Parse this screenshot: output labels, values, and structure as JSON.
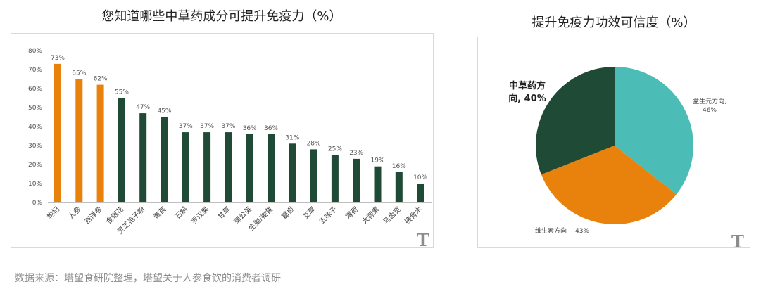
{
  "chart_data": [
    {
      "type": "bar",
      "title": "您知道哪些中草药成分可提升免疫力（%）",
      "categories": [
        "枸杞",
        "人参",
        "西洋参",
        "金银花",
        "灵芝孢子粉",
        "黄芪",
        "石斛",
        "罗汉果",
        "甘草",
        "蒲公英",
        "生姜/姜黄",
        "葛根",
        "艾草",
        "五味子",
        "薄荷",
        "大蒜素",
        "马齿苋",
        "接骨木"
      ],
      "values": [
        73,
        65,
        62,
        55,
        47,
        45,
        37,
        37,
        37,
        36,
        36,
        31,
        28,
        25,
        23,
        19,
        16,
        10
      ],
      "value_labels": [
        "73%",
        "65%",
        "62%",
        "55%",
        "47%",
        "45%",
        "37%",
        "37%",
        "37%",
        "36%",
        "36%",
        "31%",
        "28%",
        "25%",
        "23%",
        "19%",
        "16%",
        "10%"
      ],
      "highlight_count": 3,
      "ylim": [
        0,
        80
      ],
      "yticks": [
        "0%",
        "10%",
        "20%",
        "30%",
        "40%",
        "50%",
        "60%",
        "70%",
        "80%"
      ],
      "grid": false,
      "xlabel": "",
      "ylabel": "",
      "colors": {
        "highlight": "#e8820c",
        "default": "#1e4a36"
      }
    },
    {
      "type": "pie",
      "title": "提升免疫力功效可信度（%）",
      "slices": [
        {
          "label": "益生元方向,",
          "pct_label": "46%",
          "value": 46,
          "color": "#4cbcb6"
        },
        {
          "label": "维生素方向",
          "pct_label": "43%",
          "value": 43,
          "color": "#e8820c"
        },
        {
          "label": "中草药方向, 40%",
          "value": 40,
          "color": "#1e4a36"
        }
      ],
      "legend": "none"
    }
  ],
  "labels": {
    "herbal_line1": "中草药方",
    "herbal_line2": "向, 40%",
    "dot": "."
  },
  "logo": "T",
  "source": "数据来源：塔望食研院整理，塔望关于人参食饮的消费者调研"
}
